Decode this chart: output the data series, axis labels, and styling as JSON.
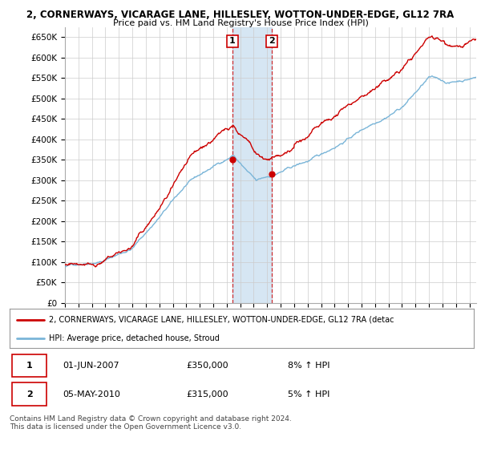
{
  "title_line1": "2, CORNERWAYS, VICARAGE LANE, HILLESLEY, WOTTON-UNDER-EDGE, GL12 7RA",
  "title_line2": "Price paid vs. HM Land Registry's House Price Index (HPI)",
  "ylabel_ticks": [
    "£0",
    "£50K",
    "£100K",
    "£150K",
    "£200K",
    "£250K",
    "£300K",
    "£350K",
    "£400K",
    "£450K",
    "£500K",
    "£550K",
    "£600K",
    "£650K"
  ],
  "ytick_values": [
    0,
    50000,
    100000,
    150000,
    200000,
    250000,
    300000,
    350000,
    400000,
    450000,
    500000,
    550000,
    600000,
    650000
  ],
  "hpi_color": "#7ab5d8",
  "price_color": "#cc0000",
  "sale1_date_x": 2007.42,
  "sale1_price": 350000,
  "sale1_label": "1",
  "sale2_date_x": 2010.34,
  "sale2_price": 315000,
  "sale2_label": "2",
  "legend_line1": "2, CORNERWAYS, VICARAGE LANE, HILLESLEY, WOTTON-UNDER-EDGE, GL12 7RA (detac",
  "legend_line2": "HPI: Average price, detached house, Stroud",
  "table_row1": [
    "1",
    "01-JUN-2007",
    "£350,000",
    "8% ↑ HPI"
  ],
  "table_row2": [
    "2",
    "05-MAY-2010",
    "£315,000",
    "5% ↑ HPI"
  ],
  "footnote": "Contains HM Land Registry data © Crown copyright and database right 2024.\nThis data is licensed under the Open Government Licence v3.0.",
  "xmin": 1995.0,
  "xmax": 2025.5,
  "ymin": 0,
  "ymax": 675000,
  "shade_x1": 2007.42,
  "shade_x2": 2010.34,
  "background_color": "#ffffff",
  "grid_color": "#cccccc",
  "shade_color": "#cce0f0",
  "seed": 42
}
